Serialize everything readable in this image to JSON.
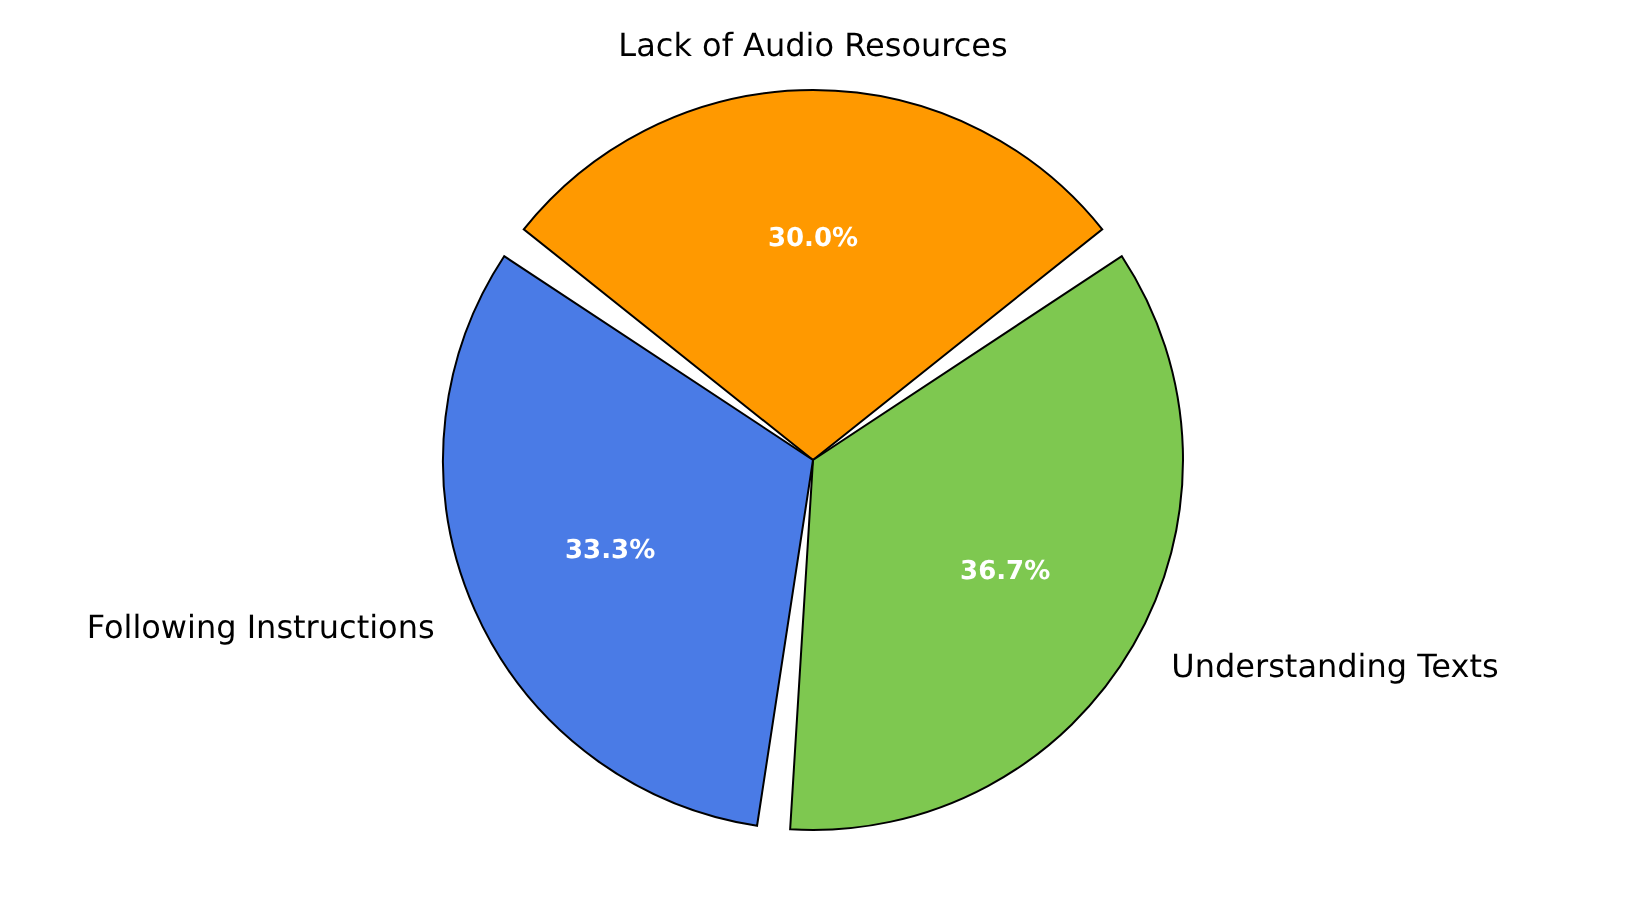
{
  "chart_data": {
    "type": "pie",
    "categories": [
      "Lack of Audio Resources",
      "Understanding Texts",
      "Following Instructions"
    ],
    "values": [
      30.0,
      36.7,
      33.3
    ],
    "colors": [
      "#ff9900",
      "#7ec850",
      "#4a7be6"
    ],
    "value_labels": [
      "30.0%",
      "36.7%",
      "33.3%"
    ],
    "legend": false
  }
}
